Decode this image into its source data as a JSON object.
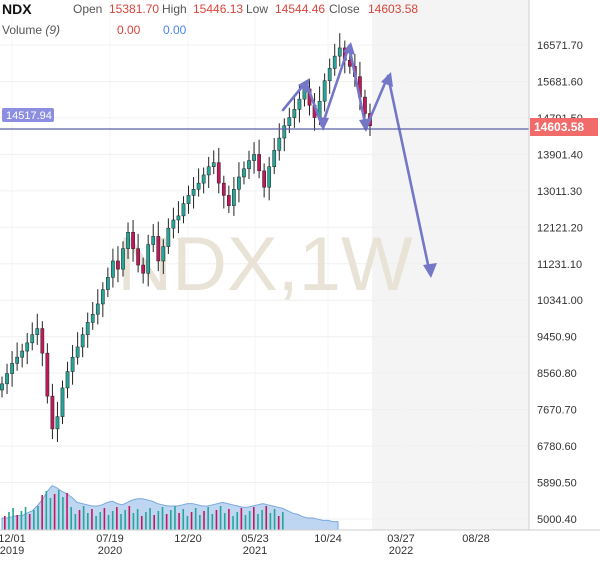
{
  "header": {
    "symbol": "NDX",
    "open_label": "Open",
    "open_value": "15381.70",
    "high_label": "High",
    "high_value": "15446.13",
    "low_label": "Low",
    "low_value": "14544.46",
    "close_label": "Close",
    "close_value": "14603.58",
    "volume_label": "Volume",
    "volume_period": "(9)",
    "volume_value": "0.00",
    "volume_ma_value": "0.00"
  },
  "watermark": "NDX,1W",
  "colors": {
    "up": "#26a69a",
    "down": "#c2185b",
    "annotation": "#7477c8",
    "price_tag": "#f26b6b",
    "level_tag": "#8c8fe0",
    "volume_area": "#a8c8ee"
  },
  "chart_data": {
    "type": "candlestick",
    "title": "NDX,1W",
    "y_axis_ticks": [
      "16571.70",
      "15681.60",
      "14791.50",
      "13901.40",
      "13011.30",
      "12121.20",
      "11231.10",
      "10341.00",
      "9450.90",
      "8560.80",
      "7670.70",
      "6780.60",
      "5890.50",
      "5000.40"
    ],
    "y_axis_values": [
      16571.7,
      15681.6,
      14791.5,
      13901.4,
      13011.3,
      12121.2,
      11231.1,
      10341.0,
      9450.9,
      8560.8,
      7670.7,
      6780.6,
      5890.5,
      5000.4
    ],
    "x_axis_ticks": [
      {
        "label": "12/01",
        "sub": "2019"
      },
      {
        "label": "07/19",
        "sub": "2020"
      },
      {
        "label": "12/20",
        "sub": ""
      },
      {
        "label": "05/23",
        "sub": "2021"
      },
      {
        "label": "10/24",
        "sub": ""
      },
      {
        "label": "03/27",
        "sub": "2022"
      },
      {
        "label": "08/28",
        "sub": ""
      }
    ],
    "last_price": "14603.58",
    "horizontal_level": "14517.94",
    "ohlc_close_path": [
      8300,
      8550,
      8800,
      8950,
      9100,
      9300,
      9500,
      9650,
      9050,
      8000,
      7200,
      7500,
      8200,
      8600,
      8950,
      9200,
      9500,
      9800,
      10000,
      10250,
      10600,
      10900,
      11300,
      11100,
      11600,
      12000,
      11600,
      11200,
      11000,
      11700,
      11900,
      11300,
      11650,
      12100,
      12300,
      12400,
      12700,
      12900,
      13050,
      13200,
      13400,
      13600,
      13700,
      13200,
      12900,
      12650,
      13050,
      13350,
      13550,
      13750,
      13900,
      13500,
      13100,
      13600,
      14000,
      14300,
      14600,
      14800,
      15000,
      15250,
      15500,
      15100,
      14800,
      15200,
      15700,
      16000,
      16300,
      16500,
      16200,
      16050,
      15800,
      15300,
      14900,
      14600
    ],
    "volume_path": [
      1,
      1,
      1.1,
      1.2,
      1.2,
      1.4,
      1.6,
      2,
      2.5,
      3.2,
      3.7,
      3.5,
      3.2,
      3,
      2.7,
      2.3,
      2.2,
      2.1,
      2,
      2,
      2.1,
      2.3,
      2.4,
      2.2,
      2.1,
      2.3,
      2.5,
      2.6,
      2.6,
      2.5,
      2.4,
      2.2,
      2.1,
      2,
      2,
      2,
      2.1,
      2.2,
      2.2,
      2.1,
      2,
      2,
      2.1,
      2.2,
      2.3,
      2.2,
      2.1,
      2,
      1.9,
      1.9,
      2,
      2.1,
      2.2,
      2.1,
      2,
      1.9,
      1.8,
      1.6,
      1.4,
      1.3,
      1.1,
      1,
      1,
      0.9,
      0.8,
      0.8,
      0.7,
      0.7
    ]
  }
}
